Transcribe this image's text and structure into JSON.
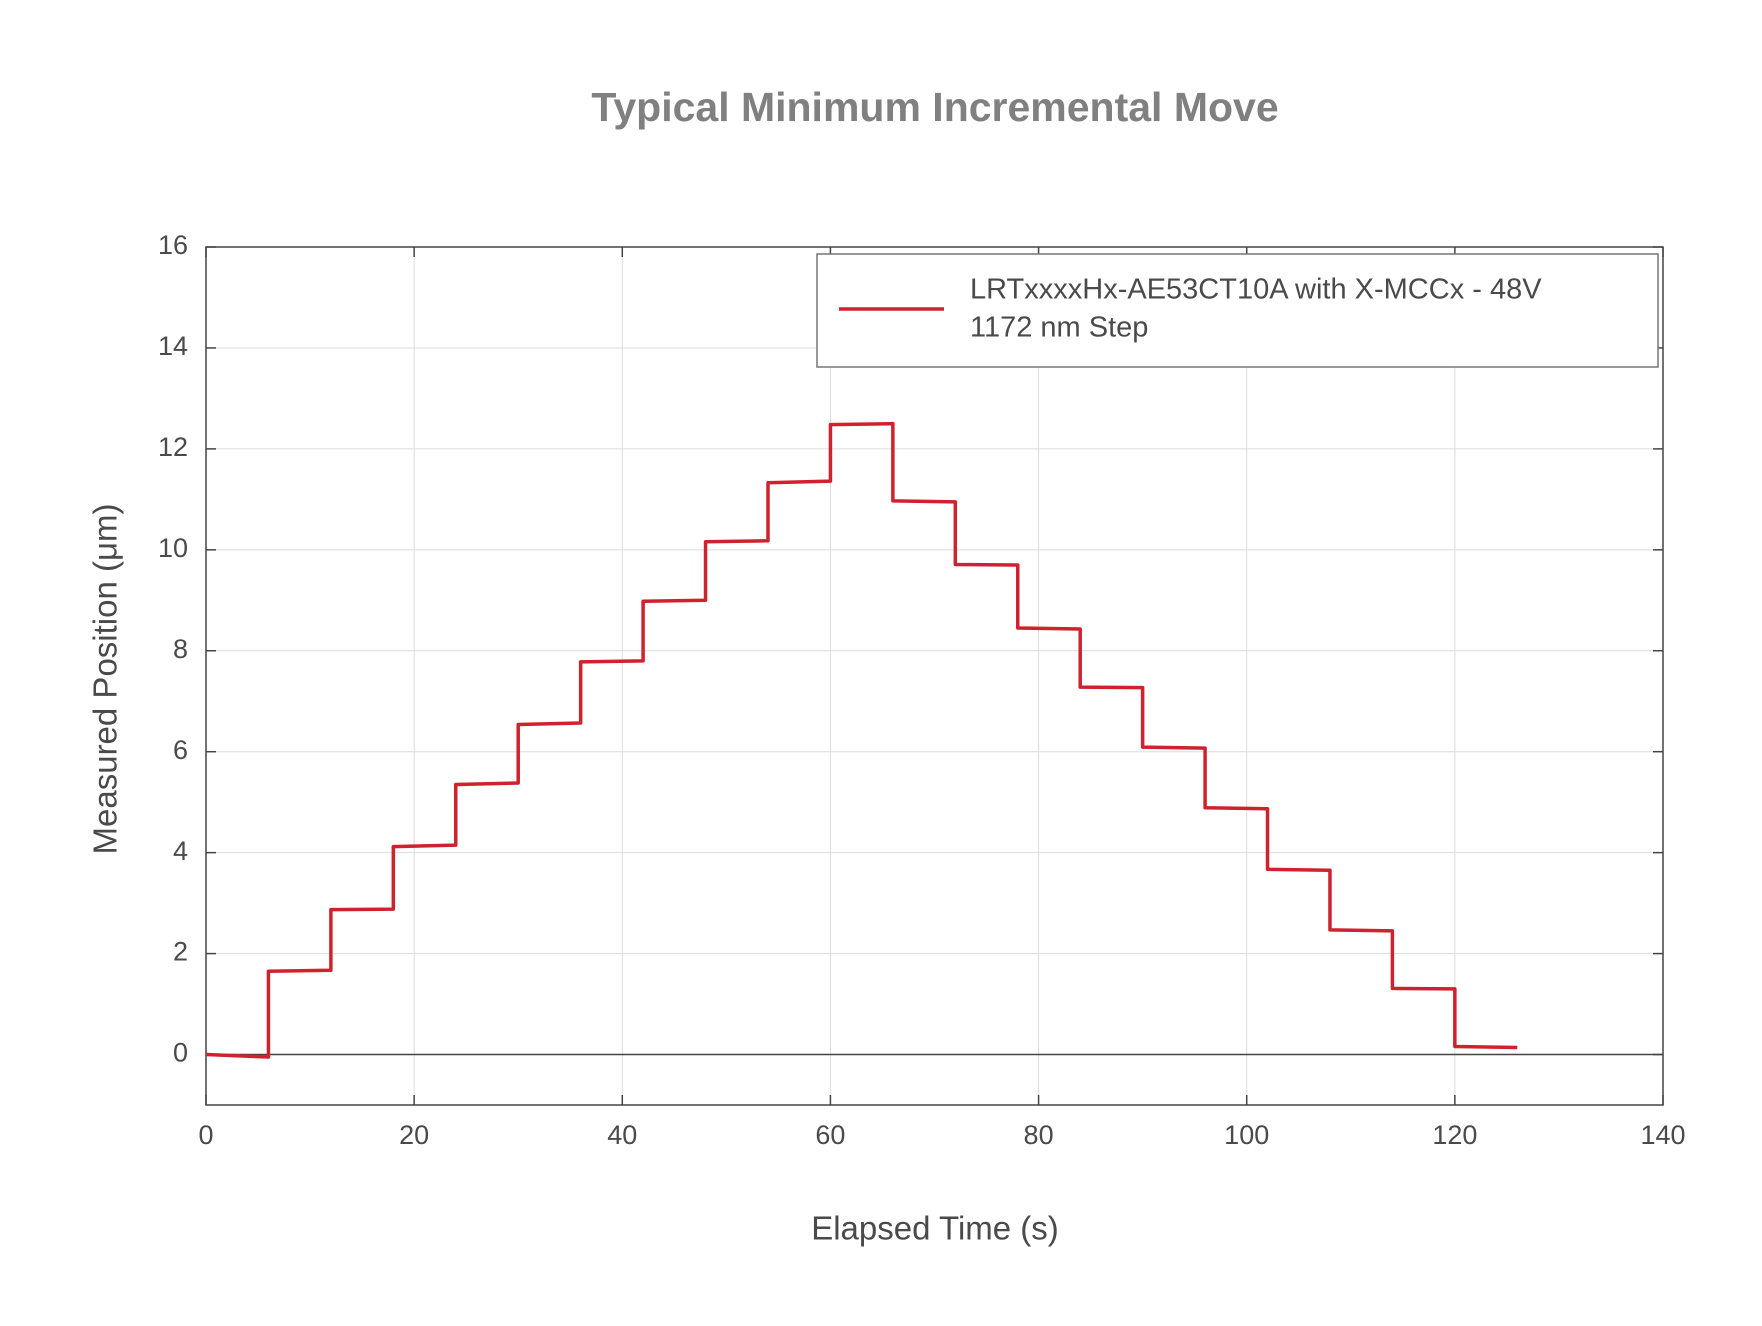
{
  "chart_data": {
    "type": "line",
    "title": "Typical Minimum Incremental Move",
    "x_label": "Elapsed Time (s)",
    "y_label": "Measured Position (μm)",
    "legend_subtitle": "1172 nm Step",
    "legend_position": "upper right",
    "series": [
      {
        "name": "LRTxxxxHx-AE53CT10A with X-MCCx - 48V",
        "color": "#d0222e",
        "x": [
          0,
          6,
          6,
          12,
          12,
          18,
          18,
          24,
          24,
          30,
          30,
          36,
          36,
          42,
          42,
          48,
          48,
          54,
          54,
          60,
          60,
          66,
          66,
          72,
          72,
          78,
          78,
          84,
          84,
          90,
          90,
          96,
          96,
          102,
          102,
          108,
          108,
          114,
          114,
          120,
          120,
          126
        ],
        "values": [
          0,
          -0.05,
          1.65,
          1.67,
          2.87,
          2.88,
          4.12,
          4.15,
          5.35,
          5.38,
          6.54,
          6.57,
          7.78,
          7.8,
          8.98,
          9.0,
          10.16,
          10.18,
          11.33,
          11.36,
          12.48,
          12.5,
          10.97,
          10.95,
          9.71,
          9.7,
          8.45,
          8.43,
          7.28,
          7.27,
          6.09,
          6.07,
          4.89,
          4.87,
          3.67,
          3.65,
          2.47,
          2.45,
          1.31,
          1.3,
          0.16,
          0.14
        ]
      }
    ],
    "xlim": [
      0,
      140
    ],
    "xticks": [
      0,
      20,
      40,
      60,
      80,
      100,
      120,
      140
    ],
    "ylim": [
      -1,
      16
    ],
    "yticks": [
      0,
      2,
      4,
      6,
      8,
      10,
      12,
      14,
      16
    ],
    "grid": true
  }
}
